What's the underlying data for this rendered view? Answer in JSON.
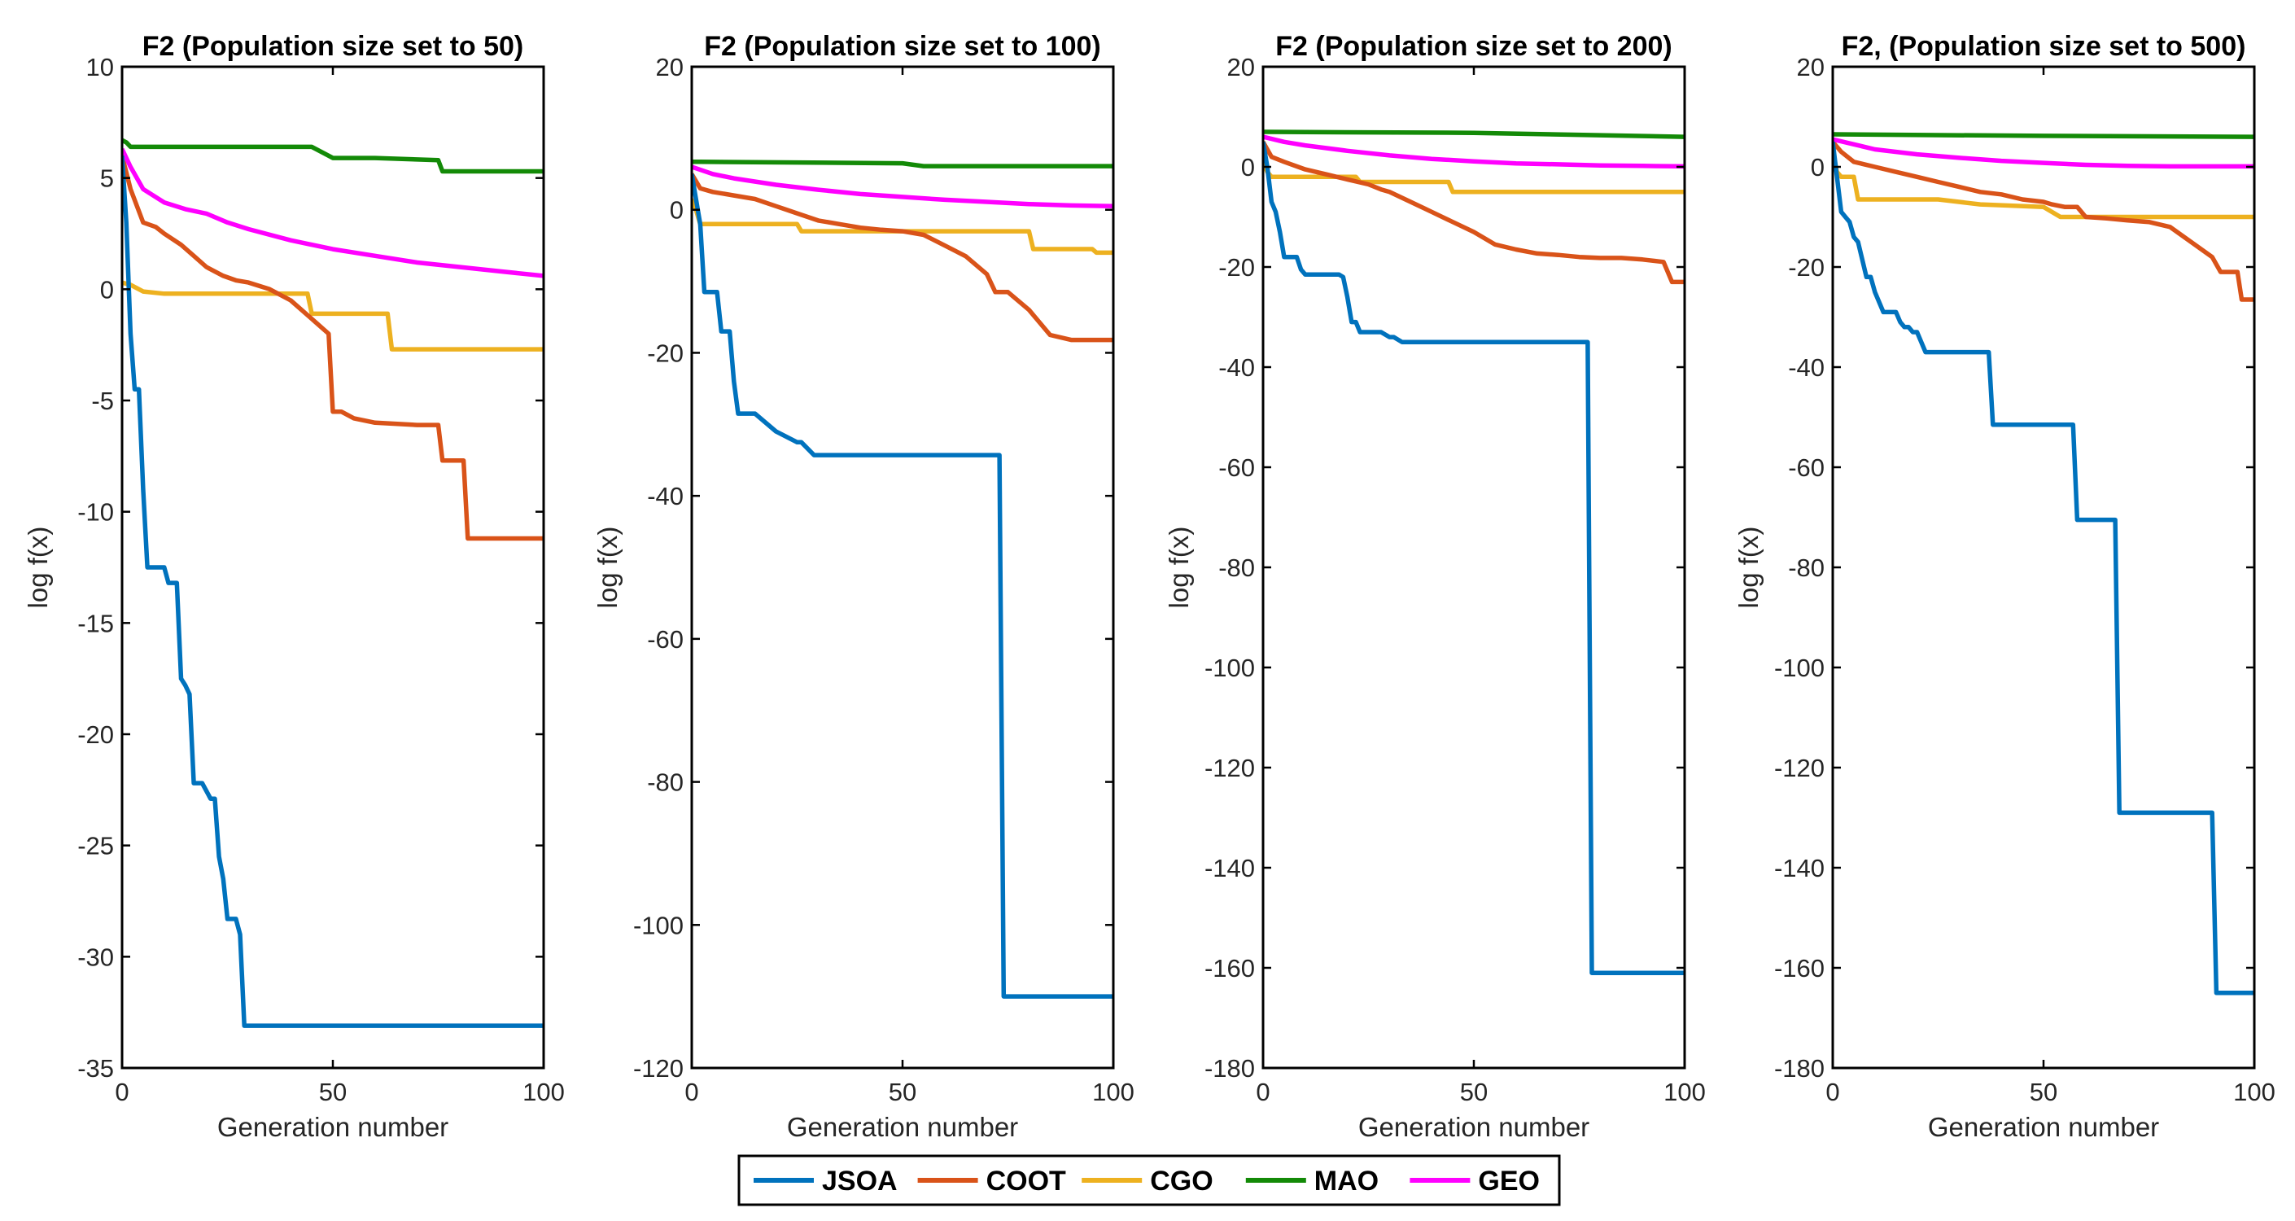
{
  "legend": [
    "JSOA",
    "COOT",
    "CGO",
    "MAO",
    "GEO"
  ],
  "colors": {
    "JSOA": "#0072BD",
    "COOT": "#D95319",
    "CGO": "#EDB120",
    "MAO": "#138A07",
    "GEO": "#FF00FF"
  },
  "chart_data": [
    {
      "type": "line",
      "title": "F2 (Population size set to 50)",
      "xlabel": "Generation number",
      "ylabel": "log f(x)",
      "xlim": [
        0,
        100
      ],
      "ylim": [
        -35,
        10
      ],
      "xticks": [
        0,
        50,
        100
      ],
      "yticks": [
        10,
        5,
        0,
        -5,
        -10,
        -15,
        -20,
        -25,
        -30,
        -35
      ],
      "series": [
        {
          "name": "JSOA",
          "x": [
            0,
            1,
            2,
            3,
            4,
            5,
            6,
            7,
            10,
            11,
            12,
            13,
            14,
            15,
            16,
            17,
            18,
            19,
            21,
            22,
            23,
            24,
            25,
            26,
            27,
            28,
            29,
            30,
            31,
            32,
            40,
            50,
            100
          ],
          "y": [
            6,
            3,
            -2,
            -4.5,
            -4.5,
            -9,
            -12.5,
            -12.5,
            -12.5,
            -13.2,
            -13.2,
            -13.2,
            -17.5,
            -17.8,
            -18.2,
            -22.2,
            -22.2,
            -22.2,
            -22.9,
            -22.9,
            -25.5,
            -26.5,
            -28.3,
            -28.3,
            -28.3,
            -29,
            -33.1,
            -33.1,
            -33.1,
            -33.1,
            -33.1,
            -33.1,
            -33.1
          ]
        },
        {
          "name": "COOT",
          "x": [
            0,
            2,
            5,
            8,
            10,
            14,
            17,
            20,
            24,
            27,
            30,
            35,
            40,
            46,
            49,
            50,
            52,
            55,
            60,
            70,
            75,
            76,
            81,
            82,
            90,
            100
          ],
          "y": [
            6,
            4.5,
            3,
            2.8,
            2.5,
            2,
            1.5,
            1,
            0.6,
            0.4,
            0.3,
            0,
            -0.5,
            -1.5,
            -2,
            -5.5,
            -5.5,
            -5.8,
            -6,
            -6.1,
            -6.1,
            -7.7,
            -7.7,
            -11.2,
            -11.2,
            -11.2
          ]
        },
        {
          "name": "CGO",
          "x": [
            0,
            2,
            5,
            10,
            20,
            44,
            45,
            60,
            63,
            64,
            80,
            100
          ],
          "y": [
            0.3,
            0.2,
            -0.1,
            -0.2,
            -0.2,
            -0.2,
            -1.1,
            -1.1,
            -1.1,
            -2.7,
            -2.7,
            -2.7
          ]
        },
        {
          "name": "MAO",
          "x": [
            0,
            1,
            2,
            3,
            45,
            48,
            50,
            55,
            60,
            75,
            76,
            80,
            100
          ],
          "y": [
            6.7,
            6.6,
            6.4,
            6.4,
            6.4,
            6.1,
            5.9,
            5.9,
            5.9,
            5.8,
            5.3,
            5.3,
            5.3
          ]
        },
        {
          "name": "GEO",
          "x": [
            0,
            2,
            5,
            10,
            15,
            20,
            25,
            30,
            40,
            50,
            60,
            70,
            80,
            90,
            100
          ],
          "y": [
            6.3,
            5.5,
            4.5,
            3.9,
            3.6,
            3.4,
            3,
            2.7,
            2.2,
            1.8,
            1.5,
            1.2,
            1,
            0.8,
            0.6
          ]
        }
      ]
    },
    {
      "type": "line",
      "title": "F2 (Population size set to 100)",
      "xlabel": "Generation number",
      "ylabel": "log f(x)",
      "xlim": [
        0,
        100
      ],
      "ylim": [
        -120,
        20
      ],
      "xticks": [
        0,
        50,
        100
      ],
      "yticks": [
        20,
        0,
        -20,
        -40,
        -60,
        -80,
        -100,
        -120
      ],
      "series": [
        {
          "name": "JSOA",
          "x": [
            0,
            2,
            3,
            6,
            7,
            9,
            10,
            11,
            12,
            15,
            20,
            25,
            26,
            29,
            30,
            40,
            60,
            73,
            74,
            80,
            100
          ],
          "y": [
            5,
            -2,
            -11.5,
            -11.5,
            -17,
            -17,
            -24,
            -28.5,
            -28.5,
            -28.5,
            -31,
            -32.5,
            -32.5,
            -34.3,
            -34.3,
            -34.3,
            -34.3,
            -34.3,
            -110,
            -110,
            -110
          ]
        },
        {
          "name": "COOT",
          "x": [
            0,
            2,
            5,
            10,
            15,
            20,
            25,
            30,
            35,
            40,
            45,
            50,
            55,
            60,
            65,
            70,
            72,
            75,
            80,
            85,
            90,
            95,
            100
          ],
          "y": [
            5,
            3,
            2.5,
            2,
            1.5,
            0.5,
            -0.5,
            -1.5,
            -2,
            -2.5,
            -2.8,
            -3,
            -3.5,
            -5,
            -6.5,
            -9,
            -11.5,
            -11.5,
            -14,
            -17.5,
            -18.2,
            -18.2,
            -18.2
          ]
        },
        {
          "name": "CGO",
          "x": [
            0,
            1,
            2,
            25,
            26,
            80,
            81,
            95,
            96,
            100
          ],
          "y": [
            1.5,
            0,
            -2,
            -2,
            -3,
            -3,
            -5.5,
            -5.5,
            -6,
            -6
          ]
        },
        {
          "name": "MAO",
          "x": [
            0,
            1,
            2,
            50,
            55,
            100
          ],
          "y": [
            6.7,
            6.7,
            6.7,
            6.5,
            6.1,
            6.1
          ]
        },
        {
          "name": "GEO",
          "x": [
            0,
            5,
            10,
            20,
            30,
            40,
            50,
            60,
            70,
            80,
            90,
            100
          ],
          "y": [
            6,
            5,
            4.4,
            3.5,
            2.8,
            2.2,
            1.8,
            1.4,
            1.1,
            0.8,
            0.6,
            0.5
          ]
        }
      ]
    },
    {
      "type": "line",
      "title": "F2  (Population size set to 200)",
      "xlabel": "Generation number",
      "ylabel": "log f(x)",
      "xlim": [
        0,
        100
      ],
      "ylim": [
        -180,
        20
      ],
      "xticks": [
        0,
        50,
        100
      ],
      "yticks": [
        20,
        0,
        -20,
        -40,
        -60,
        -80,
        -100,
        -120,
        -140,
        -160,
        -180
      ],
      "series": [
        {
          "name": "JSOA",
          "x": [
            0,
            1,
            2,
            3,
            4,
            5,
            6,
            8,
            9,
            10,
            11,
            12,
            13,
            18,
            19,
            20,
            21,
            22,
            23,
            25,
            26,
            28,
            30,
            31,
            33,
            40,
            77,
            78,
            85,
            100
          ],
          "y": [
            5,
            0,
            -7,
            -9,
            -13,
            -18,
            -18,
            -18,
            -20.5,
            -21.5,
            -21.5,
            -21.5,
            -21.5,
            -21.5,
            -22,
            -26,
            -31,
            -31,
            -33,
            -33,
            -33,
            -33,
            -34,
            -34,
            -35,
            -35,
            -35,
            -161,
            -161,
            -161
          ]
        },
        {
          "name": "COOT",
          "x": [
            0,
            2,
            5,
            10,
            15,
            20,
            25,
            28,
            30,
            35,
            40,
            45,
            50,
            52,
            55,
            60,
            65,
            70,
            75,
            80,
            85,
            90,
            95,
            97,
            100
          ],
          "y": [
            5,
            2,
            1,
            -0.5,
            -1.5,
            -2.5,
            -3.5,
            -4.5,
            -5,
            -7,
            -9,
            -11,
            -13,
            -14,
            -15.5,
            -16.5,
            -17.3,
            -17.6,
            -18,
            -18.2,
            -18.2,
            -18.5,
            -19,
            -23,
            -23
          ]
        },
        {
          "name": "CGO",
          "x": [
            0,
            1,
            2,
            5,
            10,
            22,
            23,
            44,
            45,
            60,
            100
          ],
          "y": [
            1,
            -1,
            -2,
            -2,
            -2,
            -2,
            -3,
            -3,
            -5,
            -5,
            -5
          ]
        },
        {
          "name": "MAO",
          "x": [
            0,
            1,
            50,
            100
          ],
          "y": [
            7,
            7,
            6.8,
            6
          ]
        },
        {
          "name": "GEO",
          "x": [
            0,
            5,
            10,
            20,
            30,
            40,
            50,
            60,
            70,
            80,
            90,
            100
          ],
          "y": [
            6,
            5,
            4.3,
            3.2,
            2.3,
            1.6,
            1.1,
            0.7,
            0.5,
            0.3,
            0.2,
            0.1
          ]
        }
      ]
    },
    {
      "type": "line",
      "title": "F2, (Population size set to 500)",
      "xlabel": "Generation number",
      "ylabel": "log f(x)",
      "xlim": [
        0,
        100
      ],
      "ylim": [
        -180,
        20
      ],
      "xticks": [
        0,
        50,
        100
      ],
      "yticks": [
        20,
        0,
        -20,
        -40,
        -60,
        -80,
        -100,
        -120,
        -140,
        -160,
        -180
      ],
      "series": [
        {
          "name": "JSOA",
          "x": [
            0,
            1,
            2,
            3,
            4,
            5,
            6,
            8,
            9,
            10,
            12,
            13,
            15,
            16,
            17,
            18,
            19,
            20,
            21,
            22,
            24,
            25,
            30,
            37,
            38,
            50,
            57,
            58,
            67,
            68,
            80,
            90,
            91,
            100
          ],
          "y": [
            5,
            -2,
            -9,
            -10,
            -11,
            -14,
            -15,
            -22,
            -22,
            -25,
            -29,
            -29,
            -29,
            -31,
            -32,
            -32,
            -33,
            -33,
            -35,
            -37,
            -37,
            -37,
            -37,
            -37,
            -51.5,
            -51.5,
            -51.5,
            -70.5,
            -70.5,
            -129,
            -129,
            -129,
            -165,
            -165
          ]
        },
        {
          "name": "COOT",
          "x": [
            0,
            2,
            5,
            10,
            15,
            20,
            25,
            30,
            35,
            40,
            45,
            50,
            52,
            55,
            58,
            60,
            65,
            70,
            75,
            80,
            85,
            90,
            92,
            96,
            97,
            100
          ],
          "y": [
            5,
            3,
            1,
            0,
            -1,
            -2,
            -3,
            -4,
            -5,
            -5.5,
            -6.5,
            -7,
            -7.5,
            -8,
            -8,
            -10,
            -10.3,
            -10.7,
            -11,
            -12,
            -15,
            -18,
            -21,
            -21,
            -26.5,
            -26.5
          ]
        },
        {
          "name": "CGO",
          "x": [
            0,
            1,
            2,
            5,
            6,
            25,
            35,
            50,
            54,
            70,
            100
          ],
          "y": [
            3,
            -1,
            -2,
            -2,
            -6.5,
            -6.5,
            -7.5,
            -8,
            -10,
            -10,
            -10
          ]
        },
        {
          "name": "MAO",
          "x": [
            0,
            50,
            100
          ],
          "y": [
            6.5,
            6.2,
            6
          ]
        },
        {
          "name": "GEO",
          "x": [
            0,
            5,
            10,
            20,
            30,
            40,
            50,
            60,
            70,
            80,
            90,
            100
          ],
          "y": [
            5.5,
            4.5,
            3.5,
            2.5,
            1.8,
            1.2,
            0.8,
            0.4,
            0.2,
            0.1,
            0.1,
            0.1
          ]
        }
      ]
    }
  ]
}
